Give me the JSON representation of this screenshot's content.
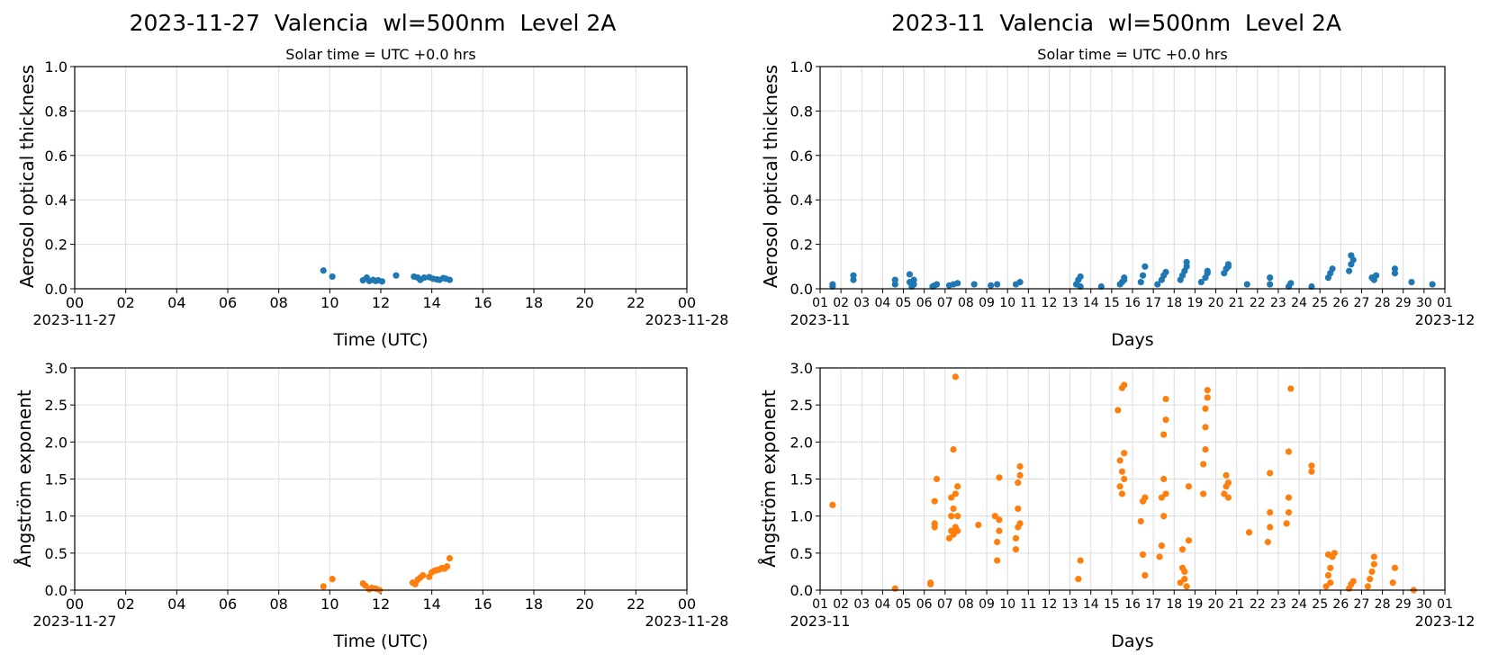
{
  "chart_data": [
    {
      "type": "scatter",
      "title": "2023-11-27  Valencia  wl=500nm  Level 2A",
      "subtitle": "Solar time = UTC +0.0 hrs",
      "xlabel": "Time (UTC)",
      "ylabel": "Aerosol optical thickness",
      "xlim": [
        0,
        24
      ],
      "ylim": [
        0,
        1.0
      ],
      "yticks": [
        "0.0",
        "0.2",
        "0.4",
        "0.6",
        "0.8",
        "1.0"
      ],
      "xticks": [
        "00",
        "02",
        "04",
        "06",
        "08",
        "10",
        "12",
        "14",
        "16",
        "18",
        "20",
        "22",
        "00"
      ],
      "x_start_label": "2023-11-27",
      "x_end_label": "2023-11-28",
      "grid": true,
      "color": "#1f77b4",
      "series": [
        {
          "x": [
            9.75,
            10.1,
            11.3,
            11.45,
            11.55,
            11.7,
            11.8,
            11.9,
            12.05,
            12.6,
            13.3,
            13.45,
            13.55,
            13.7,
            13.9,
            14.05,
            14.2,
            14.3,
            14.45,
            14.55,
            14.7
          ],
          "y": [
            0.082,
            0.055,
            0.038,
            0.05,
            0.035,
            0.04,
            0.035,
            0.038,
            0.033,
            0.06,
            0.055,
            0.05,
            0.04,
            0.05,
            0.052,
            0.045,
            0.042,
            0.04,
            0.048,
            0.045,
            0.04
          ]
        }
      ]
    },
    {
      "type": "scatter",
      "title": "2023-11  Valencia  wl=500nm  Level 2A",
      "subtitle": "Solar time = UTC +0.0 hrs",
      "xlabel": "Days",
      "ylabel": "Aerosol optical thickness",
      "xlim": [
        1,
        31
      ],
      "ylim": [
        0,
        1.0
      ],
      "yticks": [
        "0.0",
        "0.2",
        "0.4",
        "0.6",
        "0.8",
        "1.0"
      ],
      "xticks": [
        "01",
        "02",
        "03",
        "04",
        "05",
        "06",
        "07",
        "08",
        "09",
        "10",
        "11",
        "12",
        "13",
        "14",
        "15",
        "16",
        "17",
        "18",
        "19",
        "20",
        "21",
        "22",
        "23",
        "24",
        "25",
        "26",
        "27",
        "28",
        "29",
        "30",
        "01"
      ],
      "x_start_label": "2023-11",
      "x_end_label": "2023-12",
      "grid": true,
      "color": "#1f77b4",
      "series": [
        {
          "x": [
            1.6,
            1.6,
            2.6,
            2.6,
            4.6,
            4.6,
            5.3,
            5.3,
            5.4,
            5.5,
            5.5,
            6.4,
            6.5,
            6.6,
            7.2,
            7.4,
            7.6,
            8.4,
            9.2,
            9.5,
            10.4,
            10.6,
            13.3,
            13.4,
            13.5,
            13.5,
            14.5,
            15.4,
            15.5,
            15.6,
            15.6,
            16.4,
            16.5,
            16.6,
            17.2,
            17.4,
            17.5,
            17.6,
            18.3,
            18.4,
            18.5,
            18.6,
            18.6,
            19.3,
            19.5,
            19.6,
            19.6,
            20.4,
            20.5,
            20.6,
            20.6,
            21.5,
            22.6,
            22.6,
            23.5,
            23.6,
            24.6,
            25.4,
            25.5,
            25.6,
            26.4,
            26.5,
            26.5,
            26.6,
            27.5,
            27.6,
            27.7,
            28.6,
            28.6,
            29.4,
            30.4
          ],
          "y": [
            0.01,
            0.02,
            0.04,
            0.06,
            0.02,
            0.04,
            0.03,
            0.065,
            0.01,
            0.04,
            0.02,
            0.01,
            0.015,
            0.02,
            0.015,
            0.02,
            0.025,
            0.02,
            0.015,
            0.02,
            0.02,
            0.03,
            0.02,
            0.04,
            0.055,
            0.01,
            0.01,
            0.02,
            0.03,
            0.04,
            0.05,
            0.03,
            0.06,
            0.1,
            0.02,
            0.04,
            0.06,
            0.075,
            0.04,
            0.06,
            0.08,
            0.1,
            0.12,
            0.03,
            0.05,
            0.07,
            0.08,
            0.07,
            0.09,
            0.1,
            0.11,
            0.02,
            0.02,
            0.05,
            0.01,
            0.025,
            0.01,
            0.05,
            0.07,
            0.09,
            0.08,
            0.11,
            0.15,
            0.13,
            0.05,
            0.04,
            0.06,
            0.07,
            0.09,
            0.03,
            0.02
          ]
        }
      ]
    },
    {
      "type": "scatter",
      "title": "",
      "xlabel": "Time (UTC)",
      "ylabel": "Ångström exponent",
      "xlim": [
        0,
        24
      ],
      "ylim": [
        0,
        3.0
      ],
      "yticks": [
        "0.0",
        "0.5",
        "1.0",
        "1.5",
        "2.0",
        "2.5",
        "3.0"
      ],
      "xticks": [
        "00",
        "02",
        "04",
        "06",
        "08",
        "10",
        "12",
        "14",
        "16",
        "18",
        "20",
        "22",
        "00"
      ],
      "x_start_label": "2023-11-27",
      "x_end_label": "2023-11-28",
      "grid": true,
      "color": "#ff7f0e",
      "series": [
        {
          "x": [
            9.75,
            10.1,
            11.3,
            11.4,
            11.55,
            11.65,
            11.8,
            11.95,
            13.25,
            13.35,
            13.45,
            13.55,
            13.65,
            13.9,
            14.0,
            14.1,
            14.2,
            14.3,
            14.4,
            14.5,
            14.6,
            14.7
          ],
          "y": [
            0.05,
            0.15,
            0.09,
            0.06,
            0.01,
            0.03,
            0.02,
            0.0,
            0.1,
            0.08,
            0.14,
            0.17,
            0.2,
            0.18,
            0.24,
            0.26,
            0.27,
            0.28,
            0.3,
            0.29,
            0.32,
            0.43
          ]
        }
      ]
    },
    {
      "type": "scatter",
      "title": "",
      "xlabel": "Days",
      "ylabel": "Ångström exponent",
      "xlim": [
        1,
        31
      ],
      "ylim": [
        0,
        3.0
      ],
      "yticks": [
        "0.0",
        "0.5",
        "1.0",
        "1.5",
        "2.0",
        "2.5",
        "3.0"
      ],
      "xticks": [
        "01",
        "02",
        "03",
        "04",
        "05",
        "06",
        "07",
        "08",
        "09",
        "10",
        "11",
        "12",
        "13",
        "14",
        "15",
        "16",
        "17",
        "18",
        "19",
        "20",
        "21",
        "22",
        "23",
        "24",
        "25",
        "26",
        "27",
        "28",
        "29",
        "30",
        "01"
      ],
      "x_start_label": "2023-11",
      "x_end_label": "2023-12",
      "grid": true,
      "color": "#ff7f0e",
      "series": [
        {
          "x": [
            1.6,
            4.6,
            6.3,
            6.3,
            6.5,
            6.5,
            6.5,
            6.6,
            7.2,
            7.3,
            7.3,
            7.3,
            7.4,
            7.4,
            7.4,
            7.5,
            7.5,
            7.5,
            7.6,
            7.6,
            7.6,
            8.6,
            9.4,
            9.5,
            9.5,
            9.6,
            9.6,
            9.6,
            10.4,
            10.4,
            10.5,
            10.5,
            10.5,
            10.6,
            10.6,
            10.6,
            13.4,
            13.5,
            15.3,
            15.4,
            15.4,
            15.5,
            15.5,
            15.5,
            15.6,
            15.6,
            15.6,
            16.4,
            16.5,
            16.5,
            16.6,
            16.6,
            17.3,
            17.4,
            17.4,
            17.5,
            17.5,
            17.5,
            17.6,
            17.6,
            17.6,
            18.3,
            18.4,
            18.4,
            18.5,
            18.5,
            18.6,
            18.7,
            18.7,
            19.4,
            19.4,
            19.5,
            19.5,
            19.5,
            19.6,
            19.6,
            20.4,
            20.5,
            20.5,
            20.6,
            20.6,
            21.6,
            22.5,
            22.6,
            22.6,
            22.6,
            23.4,
            23.5,
            23.5,
            23.5,
            23.6,
            24.6,
            24.6,
            25.3,
            25.4,
            25.4,
            25.5,
            25.5,
            25.6,
            25.7,
            26.4,
            26.5,
            26.6,
            27.3,
            27.4,
            27.5,
            27.6,
            27.6,
            28.5,
            28.6,
            29.5
          ],
          "y": [
            1.15,
            0.02,
            0.08,
            0.1,
            0.85,
            0.9,
            1.2,
            1.5,
            0.7,
            0.8,
            1.0,
            1.25,
            1.9,
            0.75,
            1.1,
            0.85,
            1.3,
            2.88,
            0.8,
            1.0,
            1.4,
            0.88,
            1.0,
            0.4,
            0.65,
            0.8,
            0.95,
            1.52,
            0.55,
            0.7,
            0.85,
            1.1,
            1.45,
            0.9,
            1.55,
            1.67,
            0.15,
            0.4,
            2.43,
            1.4,
            1.75,
            1.3,
            1.6,
            2.73,
            1.5,
            1.85,
            2.77,
            0.93,
            1.2,
            0.48,
            0.2,
            1.25,
            0.45,
            0.6,
            1.25,
            1.0,
            1.5,
            2.1,
            1.3,
            2.3,
            2.58,
            0.1,
            0.3,
            0.55,
            0.15,
            0.25,
            0.05,
            0.67,
            1.4,
            1.3,
            1.7,
            1.9,
            2.2,
            2.45,
            2.6,
            2.7,
            1.3,
            1.4,
            1.55,
            1.25,
            1.45,
            0.78,
            0.65,
            0.85,
            1.05,
            1.58,
            0.9,
            1.05,
            1.25,
            1.87,
            2.72,
            1.6,
            1.68,
            0.05,
            0.2,
            0.48,
            0.1,
            0.3,
            0.45,
            0.5,
            0.02,
            0.08,
            0.12,
            0.05,
            0.15,
            0.25,
            0.35,
            0.45,
            0.1,
            0.3,
            0.0
          ]
        }
      ]
    }
  ]
}
